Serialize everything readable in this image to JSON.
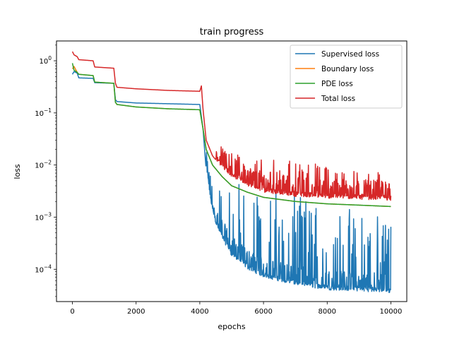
{
  "chart_data": {
    "type": "line",
    "title": "train progress",
    "xlabel": "epochs",
    "ylabel": "loss",
    "xlim": [
      -500,
      10500
    ],
    "ylim": [
      2.4e-05,
      2.4
    ],
    "yscale": "log",
    "xticks": [
      0,
      2000,
      4000,
      6000,
      8000,
      10000
    ],
    "yticks": [
      {
        "value": 0.0001,
        "mantissa": "10",
        "exp": "−4"
      },
      {
        "value": 0.001,
        "mantissa": "10",
        "exp": "−3"
      },
      {
        "value": 0.01,
        "mantissa": "10",
        "exp": "−2"
      },
      {
        "value": 0.1,
        "mantissa": "10",
        "exp": "−1"
      },
      {
        "value": 1,
        "mantissa": "10",
        "exp": "0"
      }
    ],
    "grid": false,
    "legend_position": "top-right",
    "series": [
      {
        "name": "Supervised loss",
        "color": "#1f77b4",
        "points": [
          [
            0,
            0.55
          ],
          [
            50,
            0.62
          ],
          [
            150,
            0.58
          ],
          [
            200,
            0.47
          ],
          [
            650,
            0.46
          ],
          [
            700,
            0.38
          ],
          [
            1300,
            0.37
          ],
          [
            1350,
            0.18
          ],
          [
            1400,
            0.165
          ],
          [
            2000,
            0.155
          ],
          [
            3000,
            0.15
          ],
          [
            4000,
            0.145
          ],
          [
            4100,
            0.05
          ],
          [
            4200,
            0.008
          ],
          [
            4300,
            0.003
          ],
          [
            4400,
            0.0012
          ],
          [
            4600,
            0.0005
          ],
          [
            5000,
            0.00018
          ],
          [
            5500,
            0.0001
          ],
          [
            6000,
            7e-05
          ],
          [
            7000,
            5e-05
          ],
          [
            8000,
            4e-05
          ],
          [
            9000,
            3.8e-05
          ],
          [
            10000,
            3.5e-05
          ]
        ],
        "noise": {
          "start": 4200,
          "top": 0.007,
          "top_end": 0.001
        }
      },
      {
        "name": "Boundary loss",
        "color": "#ff7f0e",
        "points": [
          [
            0,
            0.7
          ],
          [
            50,
            0.78
          ],
          [
            150,
            0.6
          ],
          [
            200,
            0.55
          ],
          [
            650,
            0.52
          ],
          [
            700,
            0.39
          ],
          [
            1300,
            0.37
          ],
          [
            1350,
            0.16
          ],
          [
            1400,
            0.145
          ],
          [
            2000,
            0.13
          ],
          [
            3000,
            0.12
          ],
          [
            4000,
            0.115
          ],
          [
            4100,
            0.05
          ],
          [
            4200,
            0.02
          ],
          [
            4400,
            0.01
          ],
          [
            4700,
            0.006
          ],
          [
            5000,
            0.004
          ],
          [
            5500,
            0.003
          ],
          [
            6000,
            0.0024
          ],
          [
            7000,
            0.002
          ],
          [
            8000,
            0.0018
          ],
          [
            9000,
            0.0017
          ],
          [
            10000,
            0.0016
          ]
        ]
      },
      {
        "name": "PDE loss",
        "color": "#2ca02c",
        "points": [
          [
            0,
            0.9
          ],
          [
            50,
            0.66
          ],
          [
            150,
            0.6
          ],
          [
            200,
            0.55
          ],
          [
            650,
            0.52
          ],
          [
            700,
            0.39
          ],
          [
            1300,
            0.37
          ],
          [
            1350,
            0.16
          ],
          [
            1400,
            0.145
          ],
          [
            2000,
            0.13
          ],
          [
            3000,
            0.12
          ],
          [
            4000,
            0.115
          ],
          [
            4100,
            0.05
          ],
          [
            4200,
            0.02
          ],
          [
            4400,
            0.01
          ],
          [
            4700,
            0.006
          ],
          [
            5000,
            0.004
          ],
          [
            5500,
            0.003
          ],
          [
            6000,
            0.0024
          ],
          [
            7000,
            0.002
          ],
          [
            8000,
            0.0018
          ],
          [
            9000,
            0.0017
          ],
          [
            10000,
            0.0016
          ]
        ]
      },
      {
        "name": "Total loss",
        "color": "#d62728",
        "points": [
          [
            0,
            1.5
          ],
          [
            50,
            1.3
          ],
          [
            150,
            1.2
          ],
          [
            200,
            1.05
          ],
          [
            650,
            1.0
          ],
          [
            700,
            0.76
          ],
          [
            1300,
            0.72
          ],
          [
            1350,
            0.37
          ],
          [
            1400,
            0.31
          ],
          [
            2000,
            0.29
          ],
          [
            3000,
            0.27
          ],
          [
            4000,
            0.26
          ],
          [
            4050,
            0.33
          ],
          [
            4100,
            0.12
          ],
          [
            4200,
            0.03
          ],
          [
            4400,
            0.015
          ],
          [
            4700,
            0.009
          ],
          [
            5000,
            0.006
          ],
          [
            5500,
            0.004
          ],
          [
            6000,
            0.003
          ],
          [
            7000,
            0.0025
          ],
          [
            8000,
            0.0023
          ],
          [
            9000,
            0.0022
          ],
          [
            10000,
            0.0021
          ]
        ],
        "noise": {
          "start": 4500,
          "top": 0.02,
          "top_end": 0.007
        }
      }
    ]
  }
}
